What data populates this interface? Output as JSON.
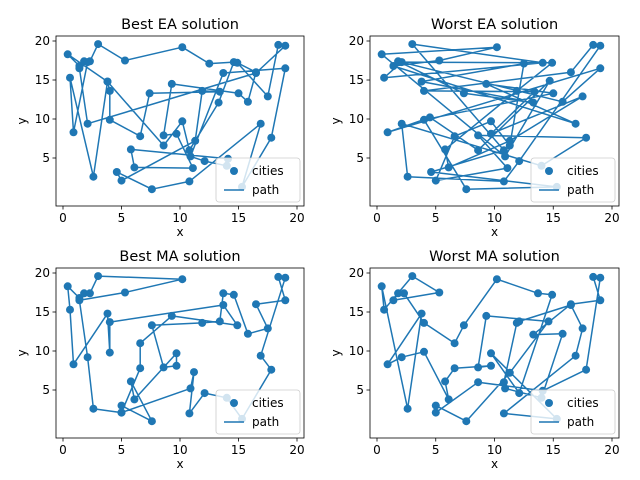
{
  "chart_data": [
    {
      "type": "scatter",
      "title": "Best EA solution",
      "xlabel": "x",
      "ylabel": "y",
      "xlim": [
        0,
        20
      ],
      "ylim": [
        0,
        20
      ],
      "xticks": [
        "0",
        "5",
        "10",
        "15",
        "20"
      ],
      "yticks": [
        "5",
        "10",
        "15",
        "20"
      ],
      "legend": {
        "placement": "lower right",
        "entries": [
          "cities",
          "path"
        ]
      },
      "color": "#1f77b4",
      "path": [
        [
          0.4,
          18.3
        ],
        [
          1.4,
          16.8
        ],
        [
          1.8,
          17.4
        ],
        [
          2.3,
          17.4
        ],
        [
          3,
          19.6
        ],
        [
          5.3,
          17.5
        ],
        [
          10.2,
          19.2
        ],
        [
          12.5,
          17.1
        ],
        [
          14.6,
          17.3
        ],
        [
          13.3,
          12.1
        ],
        [
          10.8,
          6
        ],
        [
          10.2,
          9.7
        ],
        [
          8.6,
          6.6
        ],
        [
          3.8,
          14.8
        ],
        [
          4,
          13.6
        ],
        [
          4,
          9.9
        ],
        [
          6.6,
          7.8
        ],
        [
          7.4,
          13.3
        ],
        [
          13.4,
          13.5
        ],
        [
          11.9,
          13.6
        ],
        [
          11.3,
          7.2
        ],
        [
          5,
          2.1
        ],
        [
          4.6,
          3.2
        ],
        [
          7.6,
          1
        ],
        [
          10.8,
          2
        ],
        [
          16.9,
          9.4
        ],
        [
          15.3,
          1.3
        ],
        [
          17.8,
          7.6
        ],
        [
          19,
          16.5
        ],
        [
          13.7,
          15.9
        ],
        [
          10.9,
          5.2
        ],
        [
          12.1,
          4.6
        ],
        [
          14,
          4
        ],
        [
          14.1,
          4.9
        ],
        [
          5.8,
          6.1
        ],
        [
          6.1,
          3.8
        ],
        [
          11.1,
          3.7
        ],
        [
          9.7,
          8.1
        ],
        [
          8.6,
          7.9
        ],
        [
          9.3,
          14.5
        ],
        [
          15,
          13.3
        ],
        [
          15.8,
          12.2
        ],
        [
          16.5,
          16
        ],
        [
          14.9,
          17.2
        ],
        [
          17.5,
          12.9
        ],
        [
          18.4,
          19.5
        ],
        [
          19,
          19.4
        ],
        [
          16.5,
          15.9
        ],
        [
          2.1,
          9.4
        ],
        [
          1.4,
          16.5
        ],
        [
          2.1,
          17.3
        ],
        [
          0.9,
          8.3
        ],
        [
          0.6,
          15.3
        ],
        [
          2.6,
          2.6
        ],
        [
          3.8,
          14.8
        ],
        [
          0.4,
          18.3
        ]
      ]
    },
    {
      "type": "scatter",
      "title": "Worst EA solution",
      "xlabel": "x",
      "ylabel": "y",
      "xlim": [
        0,
        20
      ],
      "ylim": [
        0,
        20
      ],
      "xticks": [
        "0",
        "5",
        "10",
        "15",
        "20"
      ],
      "yticks": [
        "5",
        "10",
        "15",
        "20"
      ],
      "legend": {
        "placement": "lower right",
        "entries": [
          "cities",
          "path"
        ]
      },
      "color": "#1f77b4",
      "path": [
        [
          0.4,
          18.3
        ],
        [
          10.2,
          19.2
        ],
        [
          5.3,
          17.5
        ],
        [
          1.4,
          16.8
        ],
        [
          16.9,
          9.4
        ],
        [
          9.3,
          14.5
        ],
        [
          15,
          13.3
        ],
        [
          4,
          9.9
        ],
        [
          7.6,
          1
        ],
        [
          15.3,
          1.3
        ],
        [
          4.6,
          3.2
        ],
        [
          10.8,
          6
        ],
        [
          3,
          19.6
        ],
        [
          14.1,
          17.2
        ],
        [
          0.6,
          15.3
        ],
        [
          2.1,
          17.3
        ],
        [
          14.9,
          17.2
        ],
        [
          11.9,
          13.6
        ],
        [
          5.8,
          6.1
        ],
        [
          6.1,
          3.8
        ],
        [
          11.3,
          7.2
        ],
        [
          17.5,
          12.9
        ],
        [
          9.7,
          8.1
        ],
        [
          13.4,
          13.5
        ],
        [
          4,
          13.6
        ],
        [
          16.5,
          16
        ],
        [
          18.4,
          19.5
        ],
        [
          19,
          19.4
        ],
        [
          12.1,
          4.6
        ],
        [
          10.8,
          2
        ],
        [
          2.6,
          2.6
        ],
        [
          2.1,
          9.4
        ],
        [
          14,
          4
        ],
        [
          17.8,
          7.6
        ],
        [
          8.6,
          7.9
        ],
        [
          11.1,
          3.7
        ],
        [
          5,
          2.1
        ],
        [
          6.6,
          7.8
        ],
        [
          9.7,
          9.7
        ],
        [
          11.3,
          6.6
        ],
        [
          12.5,
          17.1
        ],
        [
          3.8,
          14.8
        ],
        [
          13.3,
          12.1
        ],
        [
          7.4,
          13.3
        ],
        [
          1.8,
          17.4
        ],
        [
          15.8,
          12.2
        ],
        [
          19,
          16.5
        ],
        [
          0.9,
          8.3
        ],
        [
          4.5,
          10.2
        ],
        [
          8.6,
          6
        ],
        [
          14.7,
          14.9
        ],
        [
          10.9,
          5.2
        ],
        [
          0.4,
          18.3
        ]
      ]
    },
    {
      "type": "scatter",
      "title": "Best MA solution",
      "xlabel": "x",
      "ylabel": "y",
      "xlim": [
        0,
        20
      ],
      "ylim": [
        0,
        20
      ],
      "xticks": [
        "0",
        "5",
        "10",
        "15",
        "20"
      ],
      "yticks": [
        "5",
        "10",
        "15",
        "20"
      ],
      "legend": {
        "placement": "lower right",
        "entries": [
          "cities",
          "path"
        ]
      },
      "color": "#1f77b4",
      "path": [
        [
          0.4,
          18.3
        ],
        [
          1.4,
          16.8
        ],
        [
          1.8,
          17.4
        ],
        [
          2.3,
          17.4
        ],
        [
          3,
          19.6
        ],
        [
          10.2,
          19.2
        ],
        [
          5.3,
          17.5
        ],
        [
          1.4,
          16.5
        ],
        [
          2.1,
          9.2
        ],
        [
          2.6,
          2.6
        ],
        [
          5,
          2.1
        ],
        [
          5,
          3
        ],
        [
          7.6,
          1
        ],
        [
          5.8,
          6.1
        ],
        [
          6.1,
          3.8
        ],
        [
          9.7,
          9.7
        ],
        [
          9.7,
          8.1
        ],
        [
          8.6,
          7.9
        ],
        [
          7.6,
          13.3
        ],
        [
          11.9,
          13.6
        ],
        [
          13.4,
          13.8
        ],
        [
          13.7,
          17.4
        ],
        [
          14.6,
          17.2
        ],
        [
          15.8,
          12.2
        ],
        [
          17.5,
          12.9
        ],
        [
          16.5,
          16
        ],
        [
          19,
          16.5
        ],
        [
          18.4,
          19.5
        ],
        [
          19,
          19.4
        ],
        [
          16.9,
          9.4
        ],
        [
          17.8,
          7.6
        ],
        [
          15.3,
          1.3
        ],
        [
          14,
          4
        ],
        [
          12.1,
          4.6
        ],
        [
          10.8,
          2
        ],
        [
          11.2,
          7.3
        ],
        [
          10.9,
          5.2
        ],
        [
          5,
          2.1
        ],
        [
          6.6,
          7.8
        ],
        [
          6.6,
          11
        ],
        [
          9.3,
          14.5
        ],
        [
          14.9,
          13.3
        ],
        [
          13.7,
          15.9
        ],
        [
          4,
          13.7
        ],
        [
          4,
          9.8
        ],
        [
          3.8,
          14.8
        ],
        [
          0.9,
          8.3
        ],
        [
          0.6,
          15.3
        ],
        [
          0.4,
          18.3
        ]
      ]
    },
    {
      "type": "scatter",
      "title": "Worst MA solution",
      "xlabel": "x",
      "ylabel": "y",
      "xlim": [
        0,
        20
      ],
      "ylim": [
        0,
        20
      ],
      "xticks": [
        "0",
        "5",
        "10",
        "15",
        "20"
      ],
      "yticks": [
        "5",
        "10",
        "15",
        "20"
      ],
      "legend": {
        "placement": "lower right",
        "entries": [
          "cities",
          "path"
        ]
      },
      "color": "#1f77b4",
      "path": [
        [
          0.4,
          18.3
        ],
        [
          0.6,
          15.3
        ],
        [
          3,
          19.6
        ],
        [
          5.3,
          17.5
        ],
        [
          1.4,
          16.5
        ],
        [
          1.8,
          17.4
        ],
        [
          2.3,
          17.4
        ],
        [
          4,
          13.6
        ],
        [
          6.6,
          11
        ],
        [
          7.4,
          13.3
        ],
        [
          10.2,
          19.2
        ],
        [
          13.7,
          17.4
        ],
        [
          14.9,
          17.2
        ],
        [
          12.1,
          4.6
        ],
        [
          9.7,
          9.7
        ],
        [
          15.3,
          1.3
        ],
        [
          10.8,
          2
        ],
        [
          16.9,
          9.4
        ],
        [
          17.5,
          12.9
        ],
        [
          16.5,
          15.9
        ],
        [
          12.1,
          13.8
        ],
        [
          11.9,
          13.6
        ],
        [
          10.8,
          6
        ],
        [
          10.9,
          5.2
        ],
        [
          14,
          4
        ],
        [
          15.8,
          12.2
        ],
        [
          13.3,
          12.1
        ],
        [
          16.5,
          16
        ],
        [
          19,
          16.5
        ],
        [
          18.4,
          19.5
        ],
        [
          19,
          19.4
        ],
        [
          17.8,
          7.6
        ],
        [
          14.1,
          4.9
        ],
        [
          8.6,
          6
        ],
        [
          5,
          2.1
        ],
        [
          5,
          3
        ],
        [
          7.6,
          1
        ],
        [
          11.3,
          7.2
        ],
        [
          14.6,
          13.8
        ],
        [
          9.3,
          14.5
        ],
        [
          8.6,
          7.9
        ],
        [
          9.7,
          8.1
        ],
        [
          6.6,
          7.8
        ],
        [
          5.8,
          6.1
        ],
        [
          6.1,
          3.8
        ],
        [
          4,
          9.9
        ],
        [
          2.1,
          9.2
        ],
        [
          0.9,
          8.3
        ],
        [
          3.8,
          14.8
        ],
        [
          2.6,
          2.6
        ],
        [
          0.4,
          18.3
        ]
      ]
    }
  ]
}
